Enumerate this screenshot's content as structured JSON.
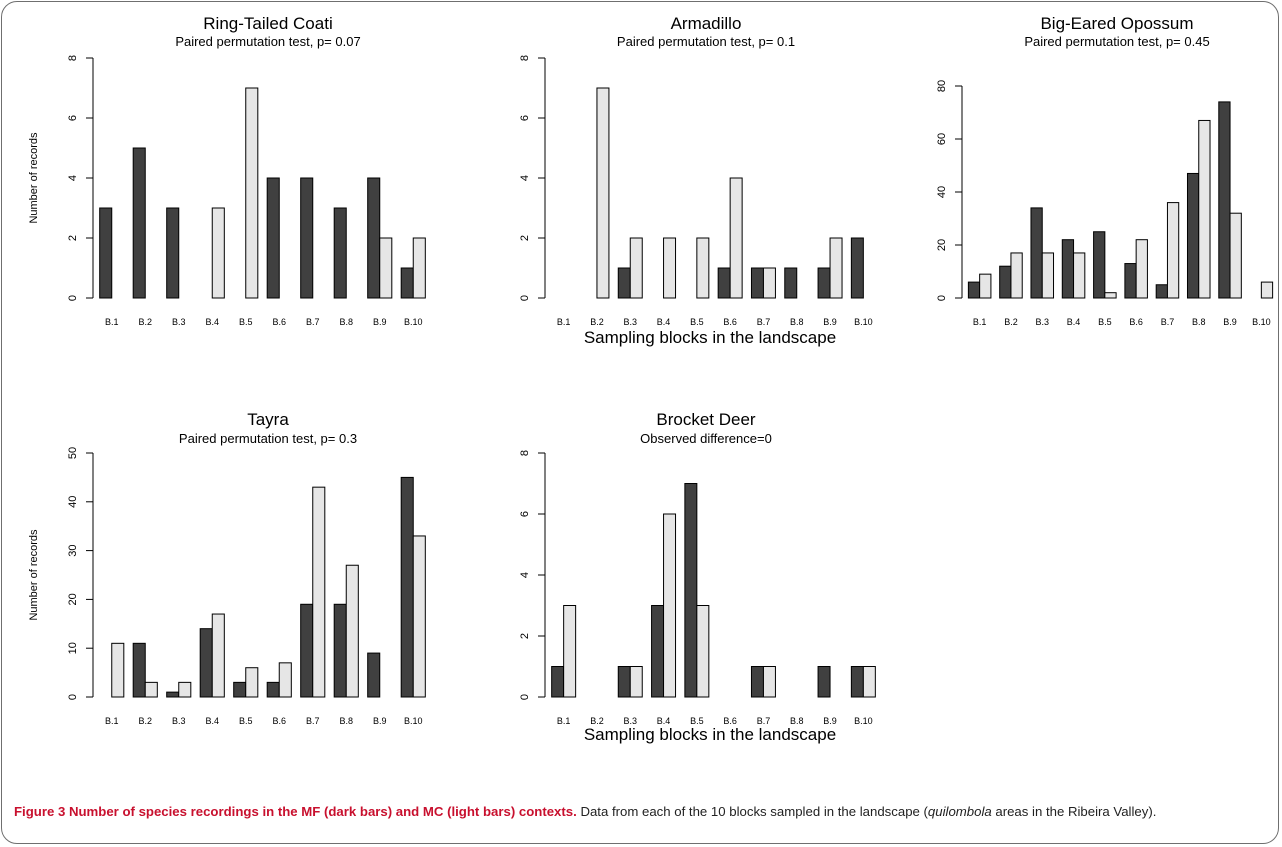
{
  "colors": {
    "dark_bar": "#404040",
    "light_bar": "#e6e6e6",
    "caption_accent": "#c8102e"
  },
  "shared_xlabel": "Sampling blocks in the landscape",
  "caption": {
    "label": "Figure 3",
    "title": "Number of species recordings in the MF (dark bars) and MC (light bars) contexts.",
    "text_before_italic": "Data from each of the 10 blocks sampled in the landscape (",
    "italic": "quilombola",
    "text_after_italic": " areas in the Ribeira Valley)."
  },
  "chart_data": [
    {
      "type": "bar",
      "title": "Ring-Tailed Coati",
      "subtitle": "Paired permutation test, p= 0.07",
      "ylabel": "Number of records",
      "ylim": [
        0,
        8
      ],
      "yticks": [
        0,
        2,
        4,
        6,
        8
      ],
      "categories": [
        "B.1",
        "B.2",
        "B.3",
        "B.4",
        "B.5",
        "B.6",
        "B.7",
        "B.8",
        "B.9",
        "B.10"
      ],
      "series": [
        {
          "values": [
            3,
            5,
            3,
            0,
            0,
            4,
            4,
            3,
            4,
            1
          ]
        },
        {
          "values": [
            0,
            0,
            0,
            3,
            7,
            0,
            0,
            0,
            2,
            2
          ]
        }
      ]
    },
    {
      "type": "bar",
      "title": "Armadillo",
      "subtitle": "Paired permutation test, p= 0.1",
      "ylabel": "",
      "ylim": [
        0,
        8
      ],
      "yticks": [
        0,
        2,
        4,
        6,
        8
      ],
      "categories": [
        "B.1",
        "B.2",
        "B.3",
        "B.4",
        "B.5",
        "B.6",
        "B.7",
        "B.8",
        "B.9",
        "B.10"
      ],
      "series": [
        {
          "values": [
            0,
            0,
            1,
            0,
            0,
            1,
            1,
            1,
            1,
            2
          ]
        },
        {
          "values": [
            0,
            7,
            2,
            2,
            2,
            4,
            1,
            0,
            2,
            0
          ]
        }
      ]
    },
    {
      "type": "bar",
      "title": "Big-Eared Opossum",
      "subtitle": "Paired permutation test, p= 0.45",
      "ylabel": "",
      "ylim": [
        0,
        80
      ],
      "yticks": [
        0,
        20,
        40,
        60,
        80
      ],
      "categories": [
        "B.1",
        "B.2",
        "B.3",
        "B.4",
        "B.5",
        "B.6",
        "B.7",
        "B.8",
        "B.9",
        "B.10"
      ],
      "series": [
        {
          "values": [
            6,
            12,
            34,
            22,
            25,
            13,
            5,
            47,
            74,
            0
          ]
        },
        {
          "values": [
            9,
            17,
            17,
            17,
            2,
            22,
            36,
            67,
            32,
            6
          ]
        }
      ]
    },
    {
      "type": "bar",
      "title": "Tayra",
      "subtitle": "Paired permutation test, p= 0.3",
      "ylabel": "Number of records",
      "ylim": [
        0,
        50
      ],
      "yticks": [
        0,
        10,
        20,
        30,
        40,
        50
      ],
      "categories": [
        "B.1",
        "B.2",
        "B.3",
        "B.4",
        "B.5",
        "B.6",
        "B.7",
        "B.8",
        "B.9",
        "B.10"
      ],
      "series": [
        {
          "values": [
            0,
            11,
            1,
            14,
            3,
            3,
            19,
            19,
            9,
            45
          ]
        },
        {
          "values": [
            11,
            3,
            3,
            17,
            6,
            7,
            43,
            27,
            0,
            33
          ]
        }
      ]
    },
    {
      "type": "bar",
      "title": "Brocket Deer",
      "subtitle": "Observed difference=0",
      "ylabel": "",
      "ylim": [
        0,
        8
      ],
      "yticks": [
        0,
        2,
        4,
        6,
        8
      ],
      "categories": [
        "B.1",
        "B.2",
        "B.3",
        "B.4",
        "B.5",
        "B.6",
        "B.7",
        "B.8",
        "B.9",
        "B.10"
      ],
      "series": [
        {
          "values": [
            1,
            0,
            1,
            3,
            7,
            0,
            1,
            0,
            1,
            1
          ]
        },
        {
          "values": [
            3,
            0,
            1,
            6,
            3,
            0,
            1,
            0,
            0,
            1
          ]
        }
      ]
    }
  ]
}
